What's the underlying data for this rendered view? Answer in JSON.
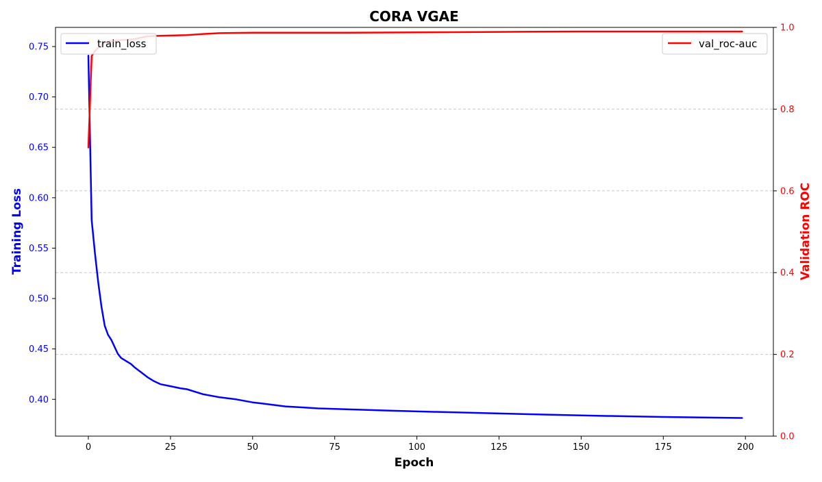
{
  "chart_data": {
    "type": "line",
    "title": "CORA VGAE",
    "xlabel": "Epoch",
    "ylabel_left": "Training Loss",
    "ylabel_right": "Validation ROC",
    "xlim": [
      -10,
      208.5
    ],
    "ylim_left": [
      0.3635,
      0.769
    ],
    "ylim_right": [
      0.0,
      1.0
    ],
    "x_ticks": [
      0,
      25,
      50,
      75,
      100,
      125,
      150,
      175,
      200
    ],
    "y_left_ticks": [
      0.4,
      0.45,
      0.5,
      0.55,
      0.6,
      0.65,
      0.7,
      0.75
    ],
    "y_right_ticks": [
      0.0,
      0.2,
      0.4,
      0.6,
      0.8,
      1.0
    ],
    "grid": "horizontal dashed (right axis)",
    "colors": {
      "left_axis": "#0000ff",
      "right_axis": "#ff0000",
      "grid": "#c8c8c8"
    },
    "series": [
      {
        "name": "train_loss",
        "axis": "left",
        "color": "#0000ff",
        "x": [
          0,
          1,
          2,
          3,
          4,
          5,
          6,
          7,
          8,
          9,
          10,
          11,
          12,
          13,
          14,
          16,
          18,
          20,
          22,
          25,
          28,
          30,
          35,
          40,
          45,
          50,
          55,
          60,
          65,
          70,
          80,
          90,
          100,
          125,
          150,
          175,
          199
        ],
        "values": [
          0.741,
          0.578,
          0.545,
          0.516,
          0.492,
          0.473,
          0.464,
          0.459,
          0.452,
          0.445,
          0.441,
          0.439,
          0.437,
          0.435,
          0.432,
          0.427,
          0.422,
          0.418,
          0.415,
          0.413,
          0.411,
          0.41,
          0.405,
          0.402,
          0.4,
          0.397,
          0.395,
          0.393,
          0.392,
          0.391,
          0.39,
          0.389,
          0.388,
          0.386,
          0.384,
          0.3825,
          0.3815
        ]
      },
      {
        "name": "val_roc-auc",
        "axis": "right",
        "color": "#ff0000",
        "x": [
          0,
          1,
          2,
          3,
          4,
          5,
          6,
          8,
          10,
          12,
          14,
          16,
          18,
          20,
          25,
          30,
          35,
          40,
          50,
          75,
          100,
          125,
          150,
          175,
          199
        ],
        "values": [
          0.706,
          0.93,
          0.942,
          0.95,
          0.957,
          0.962,
          0.965,
          0.967,
          0.969,
          0.97,
          0.971,
          0.975,
          0.978,
          0.979,
          0.98,
          0.981,
          0.984,
          0.986,
          0.987,
          0.987,
          0.988,
          0.989,
          0.99,
          0.99,
          0.99
        ]
      }
    ]
  }
}
